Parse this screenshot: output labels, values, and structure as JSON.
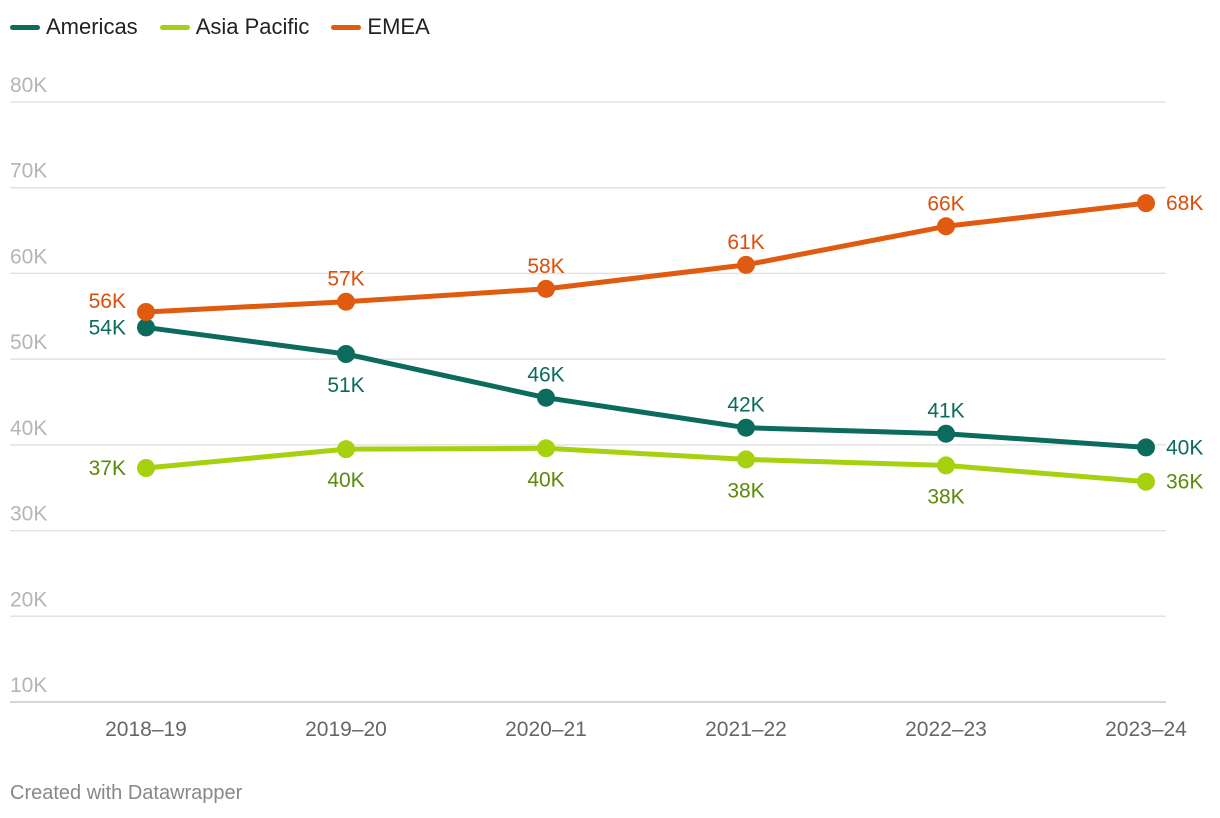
{
  "chart_data": {
    "type": "line",
    "title": "",
    "xlabel": "",
    "ylabel": "",
    "categories": [
      "2018–19",
      "2019–20",
      "2020–21",
      "2021–22",
      "2022–23",
      "2023–24"
    ],
    "ylim": [
      10000,
      80000
    ],
    "yticks": [
      {
        "value": 10000,
        "label": "10K"
      },
      {
        "value": 20000,
        "label": "20K"
      },
      {
        "value": 30000,
        "label": "30K"
      },
      {
        "value": 40000,
        "label": "40K"
      },
      {
        "value": 50000,
        "label": "50K"
      },
      {
        "value": 60000,
        "label": "60K"
      },
      {
        "value": 70000,
        "label": "70K"
      },
      {
        "value": 80000,
        "label": "80K"
      }
    ],
    "grid": true,
    "legend_position": "top-left",
    "series": [
      {
        "name": "Americas",
        "color": "#0b6b5d",
        "label_color": "#0b6b5d",
        "values": [
          53700,
          50600,
          45500,
          42000,
          41300,
          39700
        ],
        "labels": [
          "54K",
          "51K",
          "46K",
          "42K",
          "41K",
          "40K"
        ],
        "label_placement": [
          "left",
          "below",
          "above",
          "above",
          "above",
          "right"
        ]
      },
      {
        "name": "Asia Pacific",
        "color": "#a6d10f",
        "label_color": "#5a8a0a",
        "values": [
          37300,
          39500,
          39600,
          38300,
          37600,
          35700
        ],
        "labels": [
          "37K",
          "40K",
          "40K",
          "38K",
          "38K",
          "36K"
        ],
        "label_placement": [
          "left",
          "below",
          "below",
          "below",
          "below",
          "right"
        ]
      },
      {
        "name": "EMEA",
        "color": "#e05a10",
        "label_color": "#d9500a",
        "values": [
          55500,
          56700,
          58200,
          61000,
          65500,
          68200
        ],
        "labels": [
          "56K",
          "57K",
          "58K",
          "61K",
          "66K",
          "68K"
        ],
        "label_placement": [
          "left-above",
          "above",
          "above",
          "above",
          "above",
          "right"
        ]
      }
    ]
  },
  "legend": {
    "items": [
      {
        "label": "Americas",
        "color": "#0b6b5d"
      },
      {
        "label": "Asia Pacific",
        "color": "#a6d10f"
      },
      {
        "label": "EMEA",
        "color": "#e05a10"
      }
    ]
  },
  "footer": {
    "credit": "Created with Datawrapper"
  }
}
